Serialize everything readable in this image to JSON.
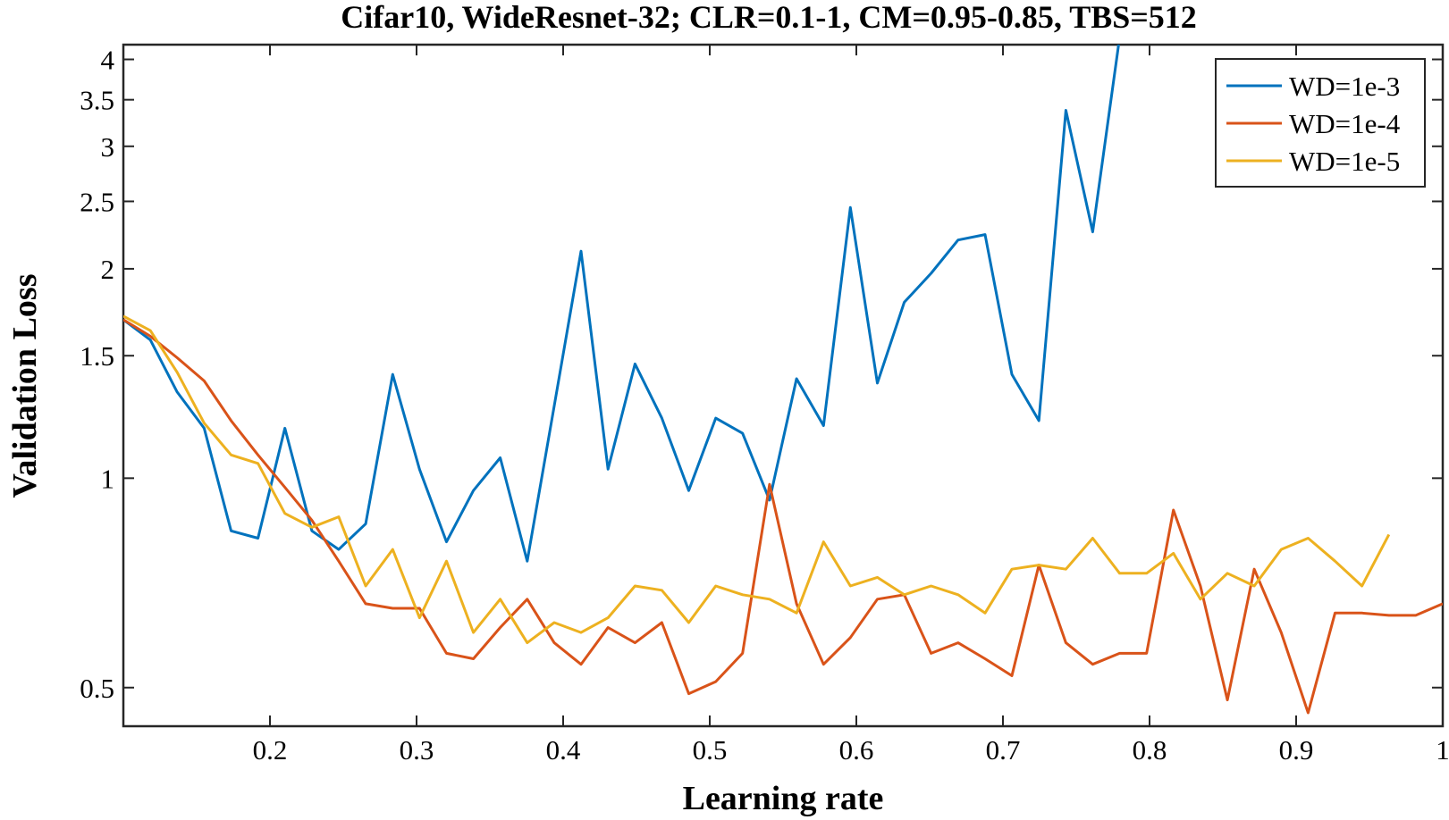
{
  "chart_data": {
    "type": "line",
    "title": "Cifar10, WideResnet-32; CLR=0.1-1, CM=0.95-0.85, TBS=512",
    "xlabel": "Learning rate",
    "ylabel": "Validation Loss",
    "xlim": [
      0.1,
      1.0
    ],
    "ylim": [
      0.44,
      4.2
    ],
    "yscale": "log",
    "grid": false,
    "legend_position": "top-right",
    "xticks": [
      0.2,
      0.3,
      0.4,
      0.5,
      0.6,
      0.7,
      0.8,
      0.9,
      1.0
    ],
    "xtick_labels": [
      "0.2",
      "0.3",
      "0.4",
      "0.5",
      "0.6",
      "0.7",
      "0.8",
      "0.9",
      "1"
    ],
    "yticks": [
      0.5,
      1,
      1.5,
      2,
      2.5,
      3,
      3.5,
      4
    ],
    "ytick_labels": [
      "0.5",
      "1",
      "1.5",
      "2",
      "2.5",
      "3",
      "3.5",
      "4"
    ],
    "x": [
      0.1,
      0.1184,
      0.1367,
      0.1551,
      0.1735,
      0.1918,
      0.2102,
      0.2286,
      0.2469,
      0.2653,
      0.2837,
      0.302,
      0.3204,
      0.3388,
      0.3571,
      0.3755,
      0.3939,
      0.4122,
      0.4306,
      0.449,
      0.4673,
      0.4857,
      0.5041,
      0.5224,
      0.5408,
      0.5592,
      0.5776,
      0.5959,
      0.6143,
      0.6327,
      0.651,
      0.6694,
      0.6878,
      0.7061,
      0.7245,
      0.7429,
      0.7612,
      0.7796,
      0.798,
      0.8163,
      0.8347,
      0.8531,
      0.8714,
      0.8898,
      0.9082,
      0.9265,
      0.9449,
      0.9633,
      0.9816,
      1.0
    ],
    "series": [
      {
        "name": "WD=1e-3",
        "color": "#0072bd",
        "values": [
          1.69,
          1.58,
          1.33,
          1.18,
          0.84,
          0.82,
          1.18,
          0.84,
          0.79,
          0.86,
          1.41,
          1.03,
          0.81,
          0.96,
          1.07,
          0.76,
          1.27,
          2.12,
          1.03,
          1.46,
          1.22,
          0.96,
          1.22,
          1.16,
          0.93,
          1.39,
          1.19,
          2.45,
          1.37,
          1.79,
          1.97,
          2.2,
          2.24,
          1.41,
          1.21,
          3.38,
          2.26,
          4.3,
          null,
          null,
          null,
          null,
          null,
          null,
          null,
          null,
          null,
          null,
          null,
          null
        ]
      },
      {
        "name": "WD=1e-4",
        "color": "#d95319",
        "values": [
          1.69,
          1.6,
          1.49,
          1.38,
          1.21,
          1.08,
          0.97,
          0.87,
          0.76,
          0.66,
          0.65,
          0.65,
          0.56,
          0.55,
          0.61,
          0.67,
          0.58,
          0.54,
          0.61,
          0.58,
          0.62,
          0.49,
          0.51,
          0.56,
          0.98,
          0.66,
          0.54,
          0.59,
          0.67,
          0.68,
          0.56,
          0.58,
          0.55,
          0.52,
          0.75,
          0.58,
          0.54,
          0.56,
          0.56,
          0.9,
          0.7,
          0.48,
          0.74,
          0.6,
          0.46,
          0.64,
          0.64,
          0.635,
          0.635,
          0.66
        ]
      },
      {
        "name": "WD=1e-5",
        "color": "#edb120",
        "values": [
          1.71,
          1.63,
          1.42,
          1.2,
          1.08,
          1.05,
          0.89,
          0.85,
          0.88,
          0.7,
          0.79,
          0.63,
          0.76,
          0.6,
          0.67,
          0.58,
          0.62,
          0.6,
          0.63,
          0.7,
          0.69,
          0.62,
          0.7,
          0.68,
          0.67,
          0.64,
          0.81,
          0.7,
          0.72,
          0.68,
          0.7,
          0.68,
          0.64,
          0.74,
          0.75,
          0.74,
          0.82,
          0.73,
          0.73,
          0.78,
          0.67,
          0.73,
          0.7,
          0.79,
          0.82,
          0.76,
          0.7,
          0.83,
          null,
          null
        ]
      }
    ]
  }
}
